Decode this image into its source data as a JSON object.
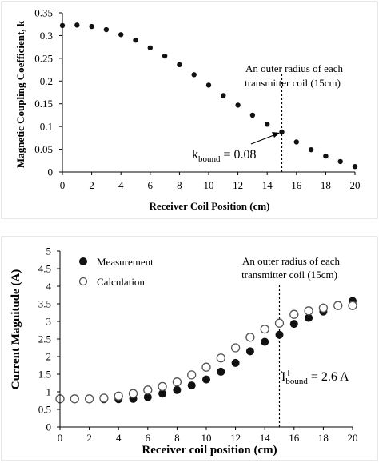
{
  "chart_data": [
    {
      "type": "scatter",
      "title": "",
      "xlabel": "Receiver Coil Position (cm)",
      "ylabel": "Magnetic Coupling Coefficient, k",
      "xlim": [
        0,
        20
      ],
      "ylim": [
        0,
        0.35
      ],
      "xticks": [
        "0",
        "2",
        "4",
        "6",
        "8",
        "10",
        "12",
        "14",
        "16",
        "18",
        "20"
      ],
      "yticks": [
        "0",
        "0.05",
        "0.1",
        "0.15",
        "0.2",
        "0.25",
        "0.3",
        "0.35"
      ],
      "grid": false,
      "series": [
        {
          "color": "#111111",
          "marker": "filled-circle",
          "x": [
            0,
            1,
            2,
            3,
            4,
            5,
            6,
            7,
            8,
            9,
            10,
            11,
            12,
            13,
            14,
            15,
            16,
            17,
            18,
            19,
            20
          ],
          "y": [
            0.322,
            0.323,
            0.32,
            0.313,
            0.302,
            0.29,
            0.273,
            0.255,
            0.236,
            0.214,
            0.191,
            0.168,
            0.147,
            0.125,
            0.105,
            0.088,
            0.066,
            0.049,
            0.035,
            0.023,
            0.012
          ]
        }
      ],
      "vline_x": 15,
      "annotations": {
        "radius_note_line1": "An outer radius of each",
        "radius_note_line2": "transmitter coil (15cm)",
        "bound_label_prefix": "k",
        "bound_label_sub": "bound",
        "bound_label_value": " = 0.08"
      }
    },
    {
      "type": "scatter",
      "title": "",
      "xlabel": "Receiver coil position (cm)",
      "ylabel": "Current Magnitude (A)",
      "xlim": [
        0,
        20
      ],
      "ylim": [
        0,
        5
      ],
      "xticks": [
        "0",
        "2",
        "4",
        "6",
        "8",
        "10",
        "12",
        "14",
        "16",
        "18",
        "20"
      ],
      "yticks": [
        "0",
        "0.5",
        "1",
        "1.5",
        "2",
        "2.5",
        "3",
        "3.5",
        "4",
        "4.5",
        "5"
      ],
      "grid": false,
      "legend_position": "top-left",
      "series": [
        {
          "name": "Measurement",
          "color": "#111111",
          "marker": "filled-circle",
          "x": [
            0,
            1,
            2,
            3,
            4,
            5,
            6,
            7,
            8,
            9,
            10,
            11,
            12,
            13,
            14,
            15,
            16,
            17,
            18,
            19,
            20
          ],
          "y": [
            0.79,
            0.79,
            0.79,
            0.79,
            0.79,
            0.8,
            0.85,
            0.95,
            1.05,
            1.18,
            1.35,
            1.57,
            1.82,
            2.15,
            2.42,
            2.62,
            2.93,
            3.1,
            3.28,
            3.47,
            3.58
          ]
        },
        {
          "name": "Calculation",
          "color": "#555555",
          "marker": "open-circle",
          "x": [
            0,
            1,
            2,
            3,
            4,
            5,
            6,
            7,
            8,
            9,
            10,
            11,
            12,
            13,
            14,
            15,
            16,
            17,
            18,
            19,
            20
          ],
          "y": [
            0.8,
            0.8,
            0.8,
            0.82,
            0.88,
            0.95,
            1.05,
            1.15,
            1.28,
            1.48,
            1.7,
            1.96,
            2.25,
            2.55,
            2.78,
            2.95,
            3.2,
            3.3,
            3.38,
            3.45,
            3.45
          ]
        }
      ],
      "vline_x": 15,
      "annotations": {
        "radius_note_line1": "An outer radius of each",
        "radius_note_line2": "transmitter coil (15cm)",
        "bound_label_prefix": "I",
        "bound_label_sub": "bound",
        "bound_label_value": " = 2.6 A"
      }
    }
  ]
}
